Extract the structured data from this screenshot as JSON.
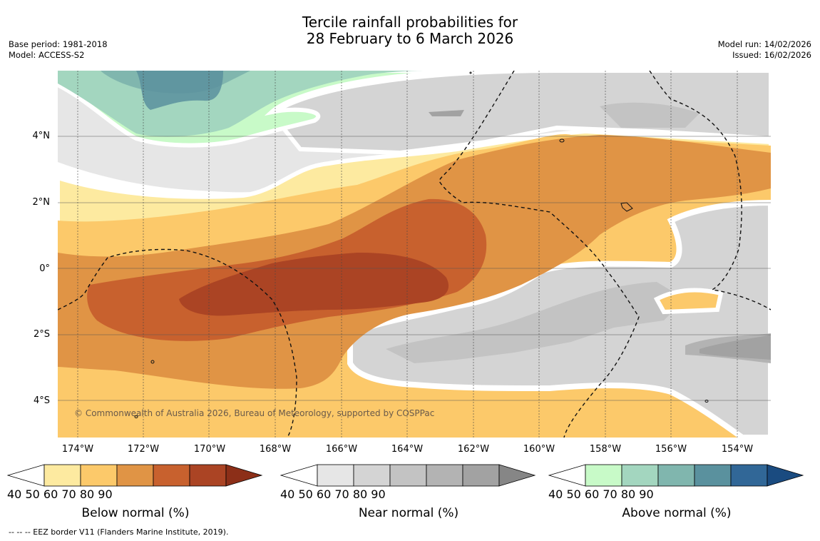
{
  "title_line1": "Tercile rainfall probabilities for",
  "title_line2": "28 February to 6 March 2026",
  "meta_left": {
    "base_period": "Base period: 1981-2018",
    "model": "Model: ACCESS-S2"
  },
  "meta_right": {
    "model_run": "Model run: 14/02/2026",
    "issued": "Issued: 16/02/2026"
  },
  "y_ticks": [
    "4°N",
    "2°N",
    "0°",
    "2°S",
    "4°S"
  ],
  "x_ticks": [
    "174°W",
    "172°W",
    "170°W",
    "168°W",
    "166°W",
    "164°W",
    "162°W",
    "160°W",
    "158°W",
    "156°W",
    "154°W"
  ],
  "copyright": "© Commonwealth of Australia 2026, Bureau of Meteorology, supported by COSPPac",
  "colorbars": [
    {
      "label": "Below normal (%)",
      "ticks": [
        "40",
        "50",
        "60",
        "70",
        "80",
        "90"
      ],
      "colors": [
        "#ffffff",
        "#fdeaa0",
        "#fcc96a",
        "#e09445",
        "#c8612e",
        "#ab4424",
        "#8c2f18"
      ]
    },
    {
      "label": "Near normal (%)",
      "ticks": [
        "40",
        "50",
        "60",
        "70",
        "80",
        "90"
      ],
      "colors": [
        "#ffffff",
        "#e6e6e6",
        "#d4d4d4",
        "#c3c3c3",
        "#b3b3b3",
        "#a2a2a2",
        "#868686"
      ]
    },
    {
      "label": "Above normal (%)",
      "ticks": [
        "40",
        "50",
        "60",
        "70",
        "80",
        "90"
      ],
      "colors": [
        "#ffffff",
        "#c8fac8",
        "#a3d6bf",
        "#80b6ae",
        "#5a919e",
        "#316797",
        "#1a4b80"
      ]
    }
  ],
  "footer": "--  --  -- EEZ border V11 (Flanders Marine Institute, 2019).",
  "map_colors": {
    "near40": "#e6e6e6",
    "near50": "#d4d4d4",
    "near60": "#c3c3c3",
    "near70": "#b3b3b3",
    "near80": "#a2a2a2",
    "below40": "#fdeaa0",
    "below50": "#fcc96a",
    "below60": "#e09445",
    "below70": "#c8612e",
    "below80": "#ab4424",
    "above40": "#c8fac8",
    "above50": "#a3d6bf",
    "above60": "#80b6ae",
    "above70": "#5a919e"
  }
}
